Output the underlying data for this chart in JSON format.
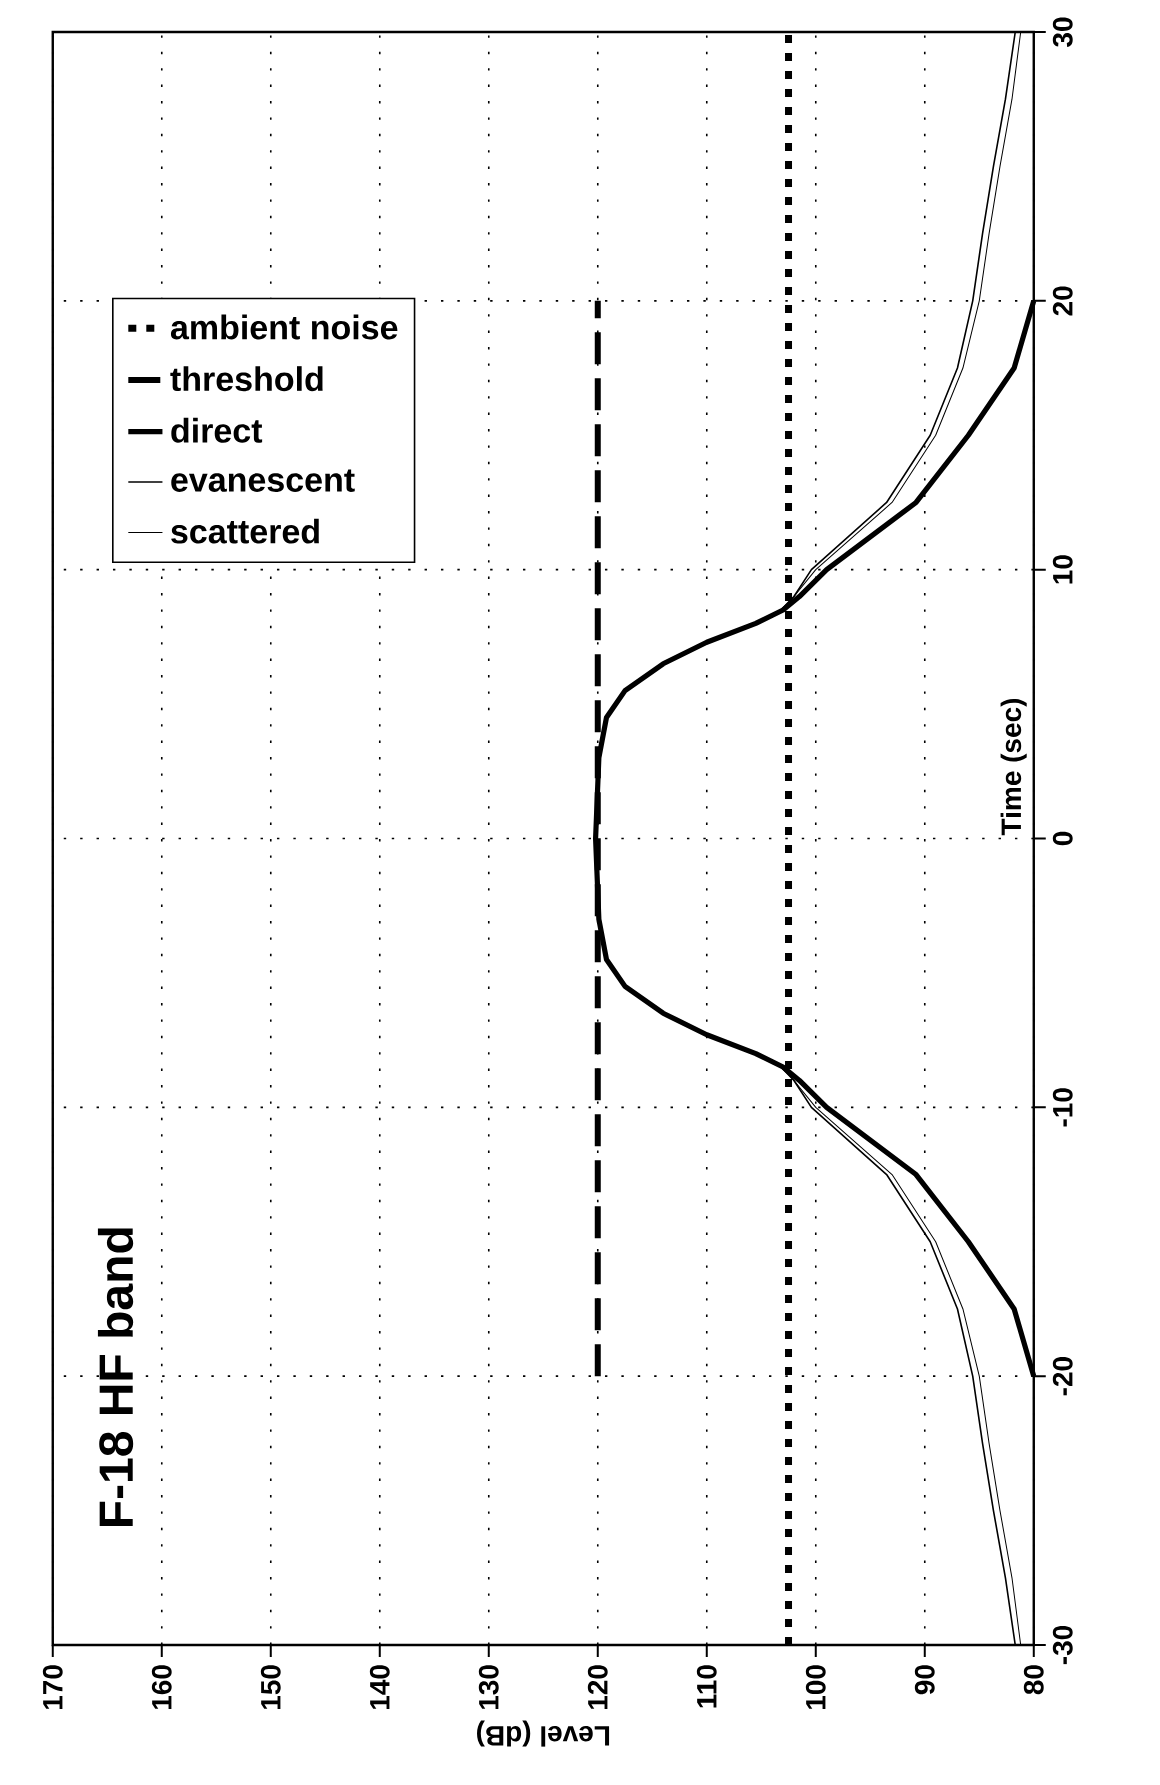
{
  "chart_data": {
    "type": "line",
    "title": "F-18 HF band",
    "xlabel": "Level (dB)",
    "ylabel": "Time (sec)",
    "xlim": [
      170,
      80
    ],
    "ylim": [
      -30,
      30
    ],
    "xticks": [
      170,
      160,
      150,
      140,
      130,
      120,
      110,
      100,
      90,
      80
    ],
    "yticks": [
      -30,
      -20,
      -10,
      0,
      10,
      20,
      30
    ],
    "grid": true,
    "legend": "top left",
    "series": [
      {
        "name": "ambient noise",
        "color": "#000000",
        "line_style": "dotted",
        "x": [
          102.5,
          102.5
        ],
        "values": [
          -30,
          30
        ]
      },
      {
        "name": "threshold",
        "color": "#000000",
        "line_style": "dashed",
        "x": [
          120,
          120
        ],
        "values": [
          -20,
          20
        ]
      },
      {
        "name": "direct",
        "color": "#000000",
        "line_style": "solid",
        "values": [
          -20,
          -17.5,
          -15,
          -12.5,
          -10,
          -9,
          -8.5,
          -8,
          -7.3,
          -6.5,
          -5.5,
          -4.5,
          -3,
          0,
          3,
          4.5,
          5.5,
          6.5,
          7.3,
          8,
          8.5,
          9,
          10,
          12.5,
          15,
          17.5,
          20
        ],
        "x": [
          80,
          81.8,
          86,
          90.8,
          99,
          101.5,
          103,
          105.5,
          110,
          114,
          117.5,
          119.2,
          119.9,
          120.2,
          119.9,
          119.2,
          117.5,
          114,
          110,
          105.5,
          103,
          101.5,
          99,
          90.8,
          86,
          81.8,
          80
        ]
      },
      {
        "name": "evanescent",
        "color": "#000000",
        "line_style": "solid",
        "values": [
          -30,
          -27.5,
          -25,
          -22.5,
          -20,
          -17.5,
          -15,
          -12.5,
          -10,
          -9,
          -8.5,
          -8,
          -7.3,
          -6.5,
          -5.5,
          -4.5,
          -3,
          0,
          3,
          4.5,
          5.5,
          6.5,
          7.3,
          8,
          8.5,
          9,
          10,
          12.5,
          15,
          17.5,
          20,
          22.5,
          25,
          27.5,
          30
        ],
        "x": [
          81.7,
          82.6,
          83.7,
          84.7,
          85.6,
          87,
          89.5,
          93.5,
          100.4,
          102,
          103.2,
          105.5,
          110,
          114,
          117.5,
          119.2,
          119.9,
          120.2,
          119.9,
          119.2,
          117.5,
          114,
          110,
          105.5,
          103.2,
          102,
          100.4,
          93.5,
          89.5,
          87,
          85.6,
          84.7,
          83.7,
          82.6,
          81.7
        ]
      },
      {
        "name": "scattered",
        "color": "#000000",
        "line_style": "solid",
        "values": [
          -30,
          -27.5,
          -25,
          -22.5,
          -20,
          -17.5,
          -15,
          -12.5,
          -10,
          -9,
          -8.5,
          -8,
          -7.3,
          -6.5,
          -5.5,
          -4.5,
          -3,
          0,
          3,
          4.5,
          5.5,
          6.5,
          7.3,
          8,
          8.5,
          9,
          10,
          12.5,
          15,
          17.5,
          20,
          22.5,
          25,
          27.5,
          30
        ],
        "x": [
          81.2,
          82,
          83.1,
          84.1,
          85,
          86.5,
          89,
          93,
          100,
          102,
          103.2,
          105.5,
          110,
          114,
          117.5,
          119.2,
          119.9,
          120.2,
          119.9,
          119.2,
          117.5,
          114,
          110,
          105.5,
          103.2,
          102,
          100,
          93,
          89,
          86.5,
          85,
          84.1,
          83.1,
          82,
          81.2
        ]
      }
    ]
  }
}
